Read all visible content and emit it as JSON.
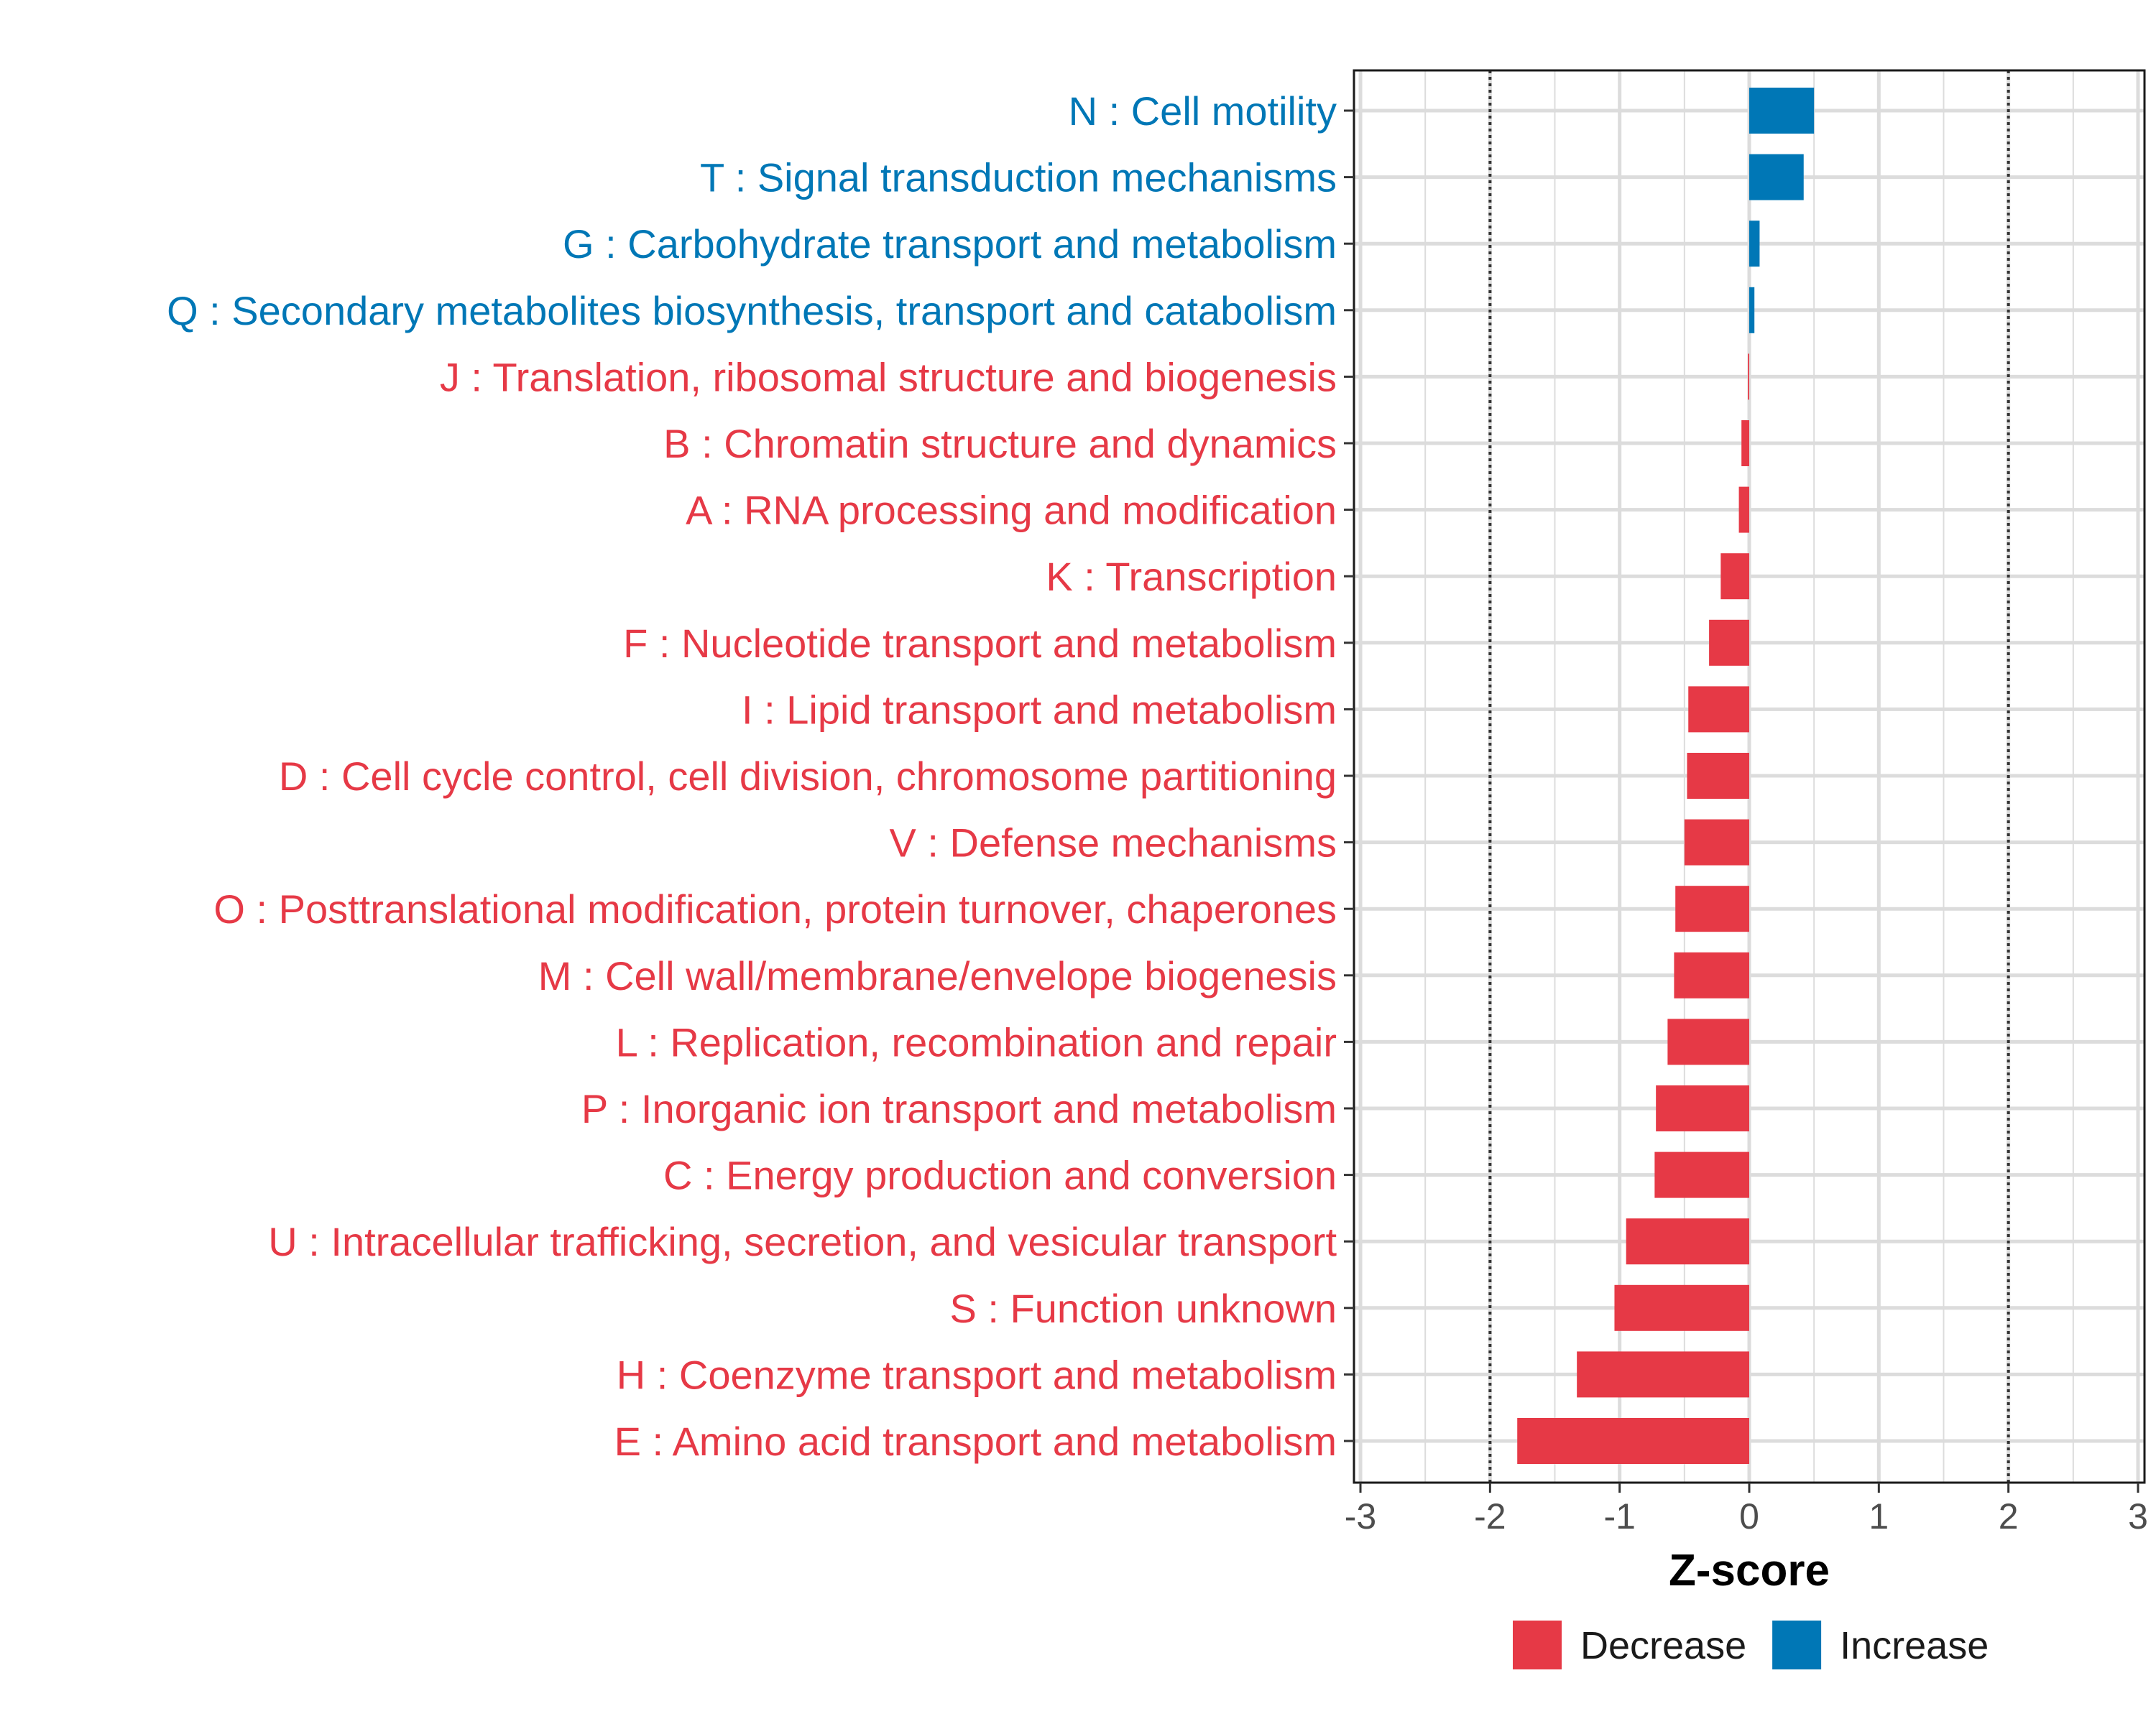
{
  "chart_data": {
    "type": "bar",
    "orientation": "horizontal",
    "title": "",
    "xlabel": "Z-score",
    "ylabel": "",
    "xlim": [
      -3.05,
      3.05
    ],
    "xticks": [
      -3,
      -2,
      -1,
      0,
      1,
      2,
      3
    ],
    "reference_lines": [
      -2,
      2
    ],
    "grid": true,
    "legend_position": "bottom",
    "colors": {
      "Decrease": "#E63946",
      "Increase": "#0077B6"
    },
    "legend": [
      {
        "label": "Decrease",
        "color": "#E63946"
      },
      {
        "label": "Increase",
        "color": "#0077B6"
      }
    ],
    "categories": [
      "N : Cell motility",
      "T : Signal transduction mechanisms",
      "G : Carbohydrate transport and metabolism",
      "Q : Secondary metabolites biosynthesis, transport and catabolism",
      "J : Translation, ribosomal structure and biogenesis",
      "B : Chromatin structure and dynamics",
      "A : RNA processing and modification",
      "K : Transcription",
      "F : Nucleotide transport and metabolism",
      "I : Lipid transport and metabolism",
      "D : Cell cycle control, cell division, chromosome partitioning",
      "V : Defense mechanisms",
      "O : Posttranslational modification, protein turnover, chaperones",
      "M : Cell wall/membrane/envelope biogenesis",
      "L : Replication, recombination and repair",
      "P : Inorganic ion transport and metabolism",
      "C : Energy production and conversion",
      "U : Intracellular trafficking, secretion, and vesicular transport",
      "S : Function unknown",
      "H : Coenzyme transport and metabolism",
      "E : Amino acid transport and metabolism"
    ],
    "values": [
      0.5,
      0.42,
      0.08,
      0.04,
      -0.01,
      -0.06,
      -0.08,
      -0.22,
      -0.31,
      -0.47,
      -0.48,
      -0.5,
      -0.57,
      -0.58,
      -0.63,
      -0.72,
      -0.73,
      -0.95,
      -1.04,
      -1.33,
      -1.79
    ],
    "groups": [
      "Increase",
      "Increase",
      "Increase",
      "Increase",
      "Decrease",
      "Decrease",
      "Decrease",
      "Decrease",
      "Decrease",
      "Decrease",
      "Decrease",
      "Decrease",
      "Decrease",
      "Decrease",
      "Decrease",
      "Decrease",
      "Decrease",
      "Decrease",
      "Decrease",
      "Decrease",
      "Decrease"
    ]
  }
}
